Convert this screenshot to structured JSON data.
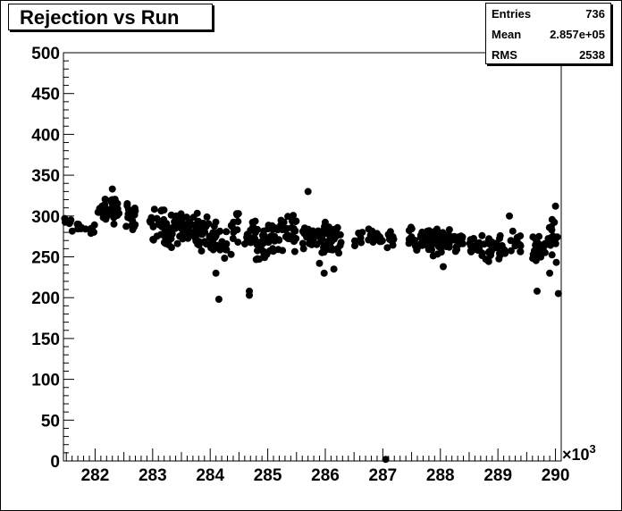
{
  "title": "Rejection vs Run",
  "stats": {
    "rows": [
      {
        "label": "Entries",
        "value": "736"
      },
      {
        "label": "Mean",
        "value": "2.857e+05"
      },
      {
        "label": "RMS",
        "value": "2538"
      }
    ]
  },
  "chart_data": {
    "type": "scatter",
    "title": "Rejection vs Run",
    "xlabel": "",
    "ylabel": "",
    "xlim": [
      281.45,
      290.1
    ],
    "ylim": [
      0,
      500
    ],
    "x_ticks": [
      "282",
      "283",
      "284",
      "285",
      "286",
      "287",
      "288",
      "289",
      "290"
    ],
    "y_ticks": [
      "0",
      "50",
      "100",
      "150",
      "200",
      "250",
      "300",
      "350",
      "400",
      "450",
      "500"
    ],
    "x_exponent_label": "×10",
    "x_exponent_power": "3",
    "grid": false,
    "marker_color": "#000000",
    "clusters": [
      {
        "x": [
          281.45,
          281.58
        ],
        "y": [
          285,
          300
        ],
        "n": 8
      },
      {
        "x": [
          281.6,
          282.0
        ],
        "y": [
          275,
          298
        ],
        "n": 14
      },
      {
        "x": [
          282.05,
          282.2
        ],
        "y": [
          283,
          325
        ],
        "n": 18
      },
      {
        "x": [
          282.25,
          282.45
        ],
        "y": [
          285,
          330
        ],
        "n": 22
      },
      {
        "x": [
          282.5,
          282.7
        ],
        "y": [
          280,
          322
        ],
        "n": 22
      },
      {
        "x": [
          282.95,
          283.2
        ],
        "y": [
          265,
          318
        ],
        "n": 24
      },
      {
        "x": [
          283.2,
          283.5
        ],
        "y": [
          258,
          315
        ],
        "n": 30
      },
      {
        "x": [
          283.5,
          283.8
        ],
        "y": [
          262,
          305
        ],
        "n": 36
      },
      {
        "x": [
          283.8,
          284.1
        ],
        "y": [
          248,
          300
        ],
        "n": 28
      },
      {
        "x": [
          284.1,
          284.3
        ],
        "y": [
          240,
          290
        ],
        "n": 14
      },
      {
        "x": [
          284.35,
          284.5
        ],
        "y": [
          245,
          320
        ],
        "n": 12
      },
      {
        "x": [
          284.6,
          284.8
        ],
        "y": [
          255,
          300
        ],
        "n": 18
      },
      {
        "x": [
          284.8,
          285.0
        ],
        "y": [
          245,
          290
        ],
        "n": 22
      },
      {
        "x": [
          285.0,
          285.3
        ],
        "y": [
          248,
          300
        ],
        "n": 26
      },
      {
        "x": [
          285.3,
          285.5
        ],
        "y": [
          255,
          305
        ],
        "n": 20
      },
      {
        "x": [
          285.6,
          285.8
        ],
        "y": [
          255,
          295
        ],
        "n": 24
      },
      {
        "x": [
          285.85,
          286.1
        ],
        "y": [
          250,
          300
        ],
        "n": 26
      },
      {
        "x": [
          286.1,
          286.3
        ],
        "y": [
          245,
          290
        ],
        "n": 16
      },
      {
        "x": [
          286.5,
          286.65
        ],
        "y": [
          262,
          290
        ],
        "n": 6
      },
      {
        "x": [
          286.75,
          287.0
        ],
        "y": [
          258,
          292
        ],
        "n": 16
      },
      {
        "x": [
          287.05,
          287.2
        ],
        "y": [
          260,
          285
        ],
        "n": 10
      },
      {
        "x": [
          287.45,
          287.7
        ],
        "y": [
          255,
          290
        ],
        "n": 22
      },
      {
        "x": [
          287.7,
          287.95
        ],
        "y": [
          248,
          290
        ],
        "n": 30
      },
      {
        "x": [
          287.95,
          288.2
        ],
        "y": [
          250,
          285
        ],
        "n": 30
      },
      {
        "x": [
          288.2,
          288.4
        ],
        "y": [
          255,
          285
        ],
        "n": 18
      },
      {
        "x": [
          288.5,
          288.7
        ],
        "y": [
          252,
          282
        ],
        "n": 14
      },
      {
        "x": [
          288.7,
          288.9
        ],
        "y": [
          240,
          280
        ],
        "n": 18
      },
      {
        "x": [
          288.95,
          289.15
        ],
        "y": [
          245,
          280
        ],
        "n": 16
      },
      {
        "x": [
          289.2,
          289.4
        ],
        "y": [
          250,
          285
        ],
        "n": 14
      },
      {
        "x": [
          289.6,
          289.8
        ],
        "y": [
          240,
          280
        ],
        "n": 18
      },
      {
        "x": [
          289.8,
          290.05
        ],
        "y": [
          240,
          300
        ],
        "n": 20
      }
    ],
    "outliers": [
      {
        "x": 282.3,
        "y": 333
      },
      {
        "x": 285.7,
        "y": 330
      },
      {
        "x": 284.15,
        "y": 198
      },
      {
        "x": 284.68,
        "y": 203
      },
      {
        "x": 284.68,
        "y": 208
      },
      {
        "x": 284.1,
        "y": 230
      },
      {
        "x": 285.9,
        "y": 242
      },
      {
        "x": 285.98,
        "y": 230
      },
      {
        "x": 286.15,
        "y": 235
      },
      {
        "x": 288.05,
        "y": 238
      },
      {
        "x": 289.68,
        "y": 208
      },
      {
        "x": 289.9,
        "y": 230
      },
      {
        "x": 290.05,
        "y": 205
      },
      {
        "x": 290.0,
        "y": 312
      },
      {
        "x": 289.2,
        "y": 300
      },
      {
        "x": 287.05,
        "y": 2
      }
    ]
  }
}
